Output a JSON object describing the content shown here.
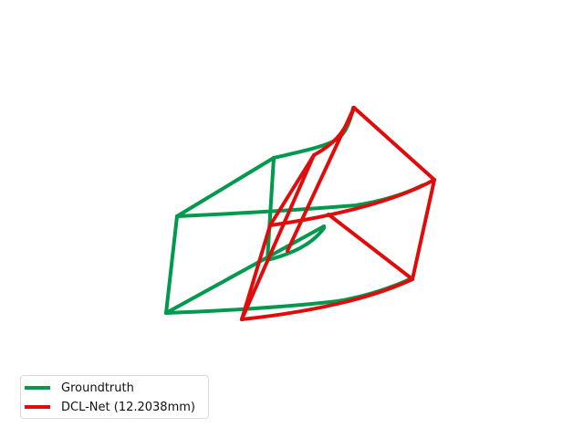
{
  "colors": {
    "groundtruth": "#00994d",
    "prediction": "#e00c0c"
  },
  "legend": {
    "groundtruth_label": "Groundtruth",
    "prediction_label": "DCL-Net (12.2038mm)"
  }
}
